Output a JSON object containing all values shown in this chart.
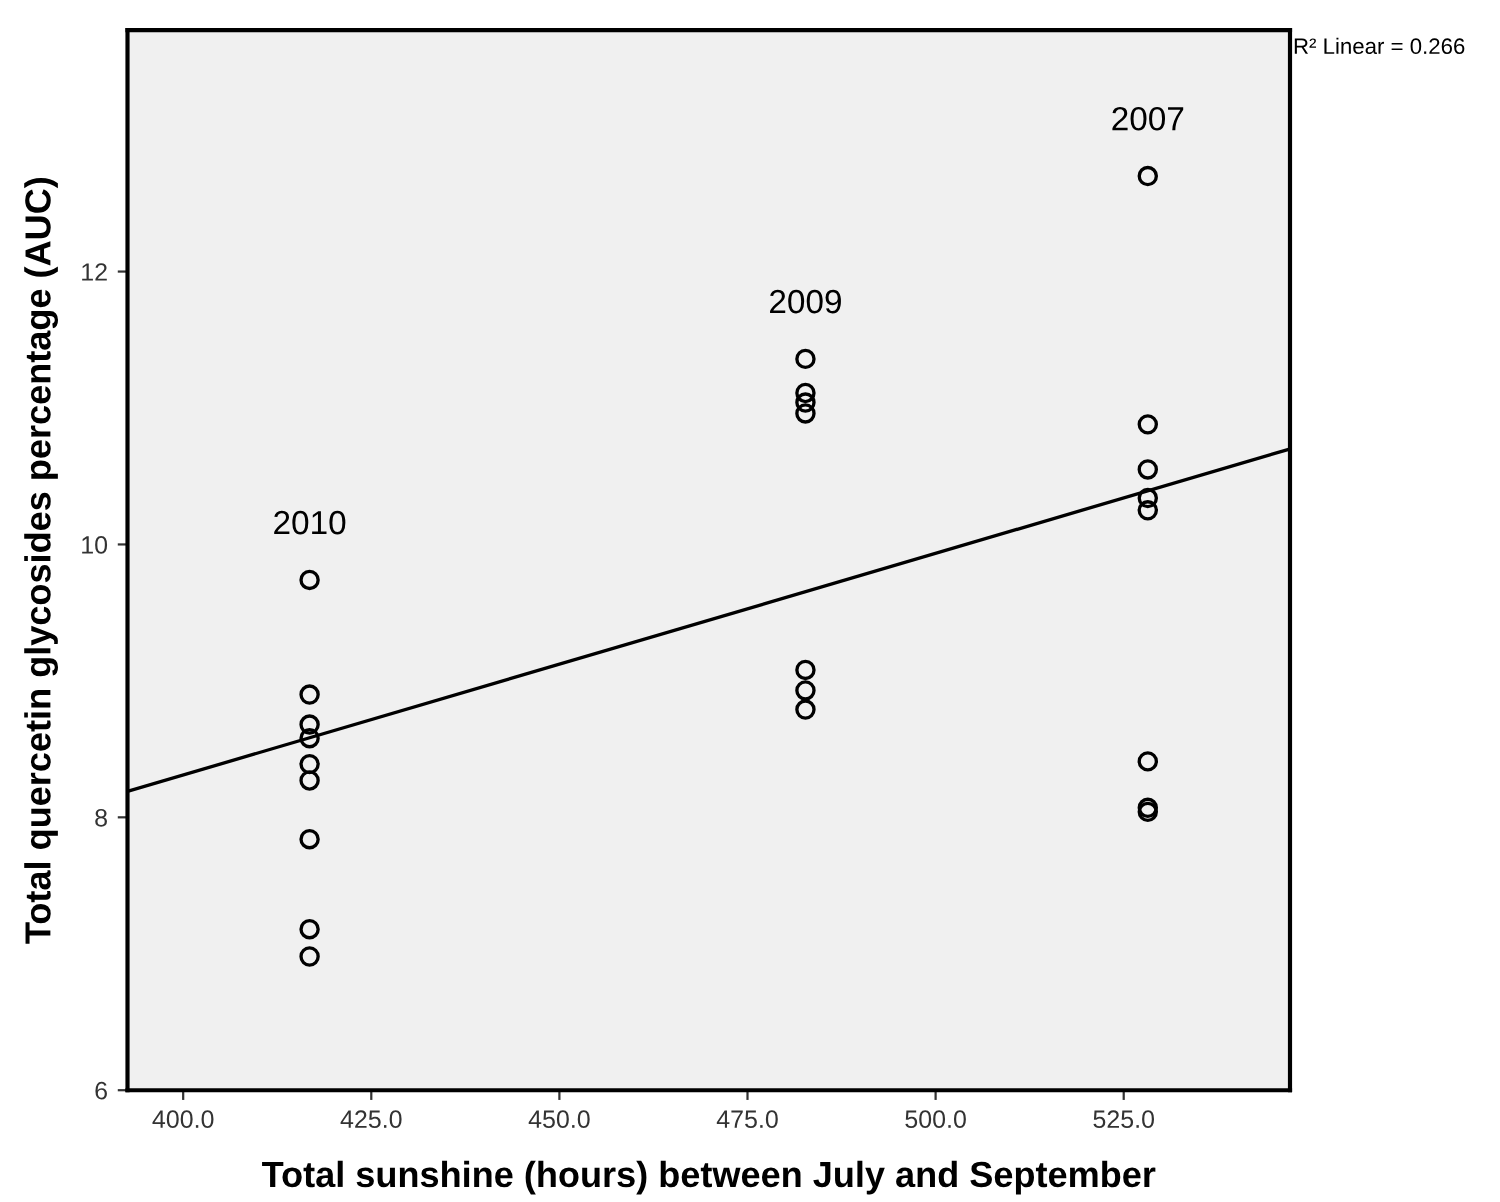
{
  "chart_data": {
    "type": "scatter",
    "xlabel": "Total sunshine (hours) between July and September",
    "ylabel": "Total quercetin glycosides percentage (AUC)",
    "xlim": [
      392.6,
      547.1
    ],
    "ylim": [
      6,
      13.77
    ],
    "xticks": [
      {
        "value": 400,
        "label": "400.0"
      },
      {
        "value": 425,
        "label": "425.0"
      },
      {
        "value": 450,
        "label": "450.0"
      },
      {
        "value": 475,
        "label": "475.0"
      },
      {
        "value": 500,
        "label": "500.0"
      },
      {
        "value": 525,
        "label": "525.0"
      }
    ],
    "yticks": [
      6,
      8,
      10,
      12
    ],
    "grid": false,
    "series": [
      {
        "color": "#000000",
        "marker": "circle",
        "x": [
          416.8,
          416.8,
          416.8,
          416.8,
          416.8,
          416.8,
          416.8,
          416.8,
          416.8,
          482.7,
          482.7,
          482.7,
          482.7,
          482.7,
          482.7,
          482.7,
          528.2,
          528.2,
          528.2,
          528.2,
          528.2,
          528.2,
          528.2,
          528.2
        ],
        "values": [
          9.74,
          8.9,
          8.68,
          8.58,
          8.39,
          8.27,
          7.84,
          7.18,
          6.98,
          11.36,
          11.11,
          11.04,
          10.96,
          9.08,
          8.93,
          8.79,
          12.7,
          10.88,
          10.55,
          10.34,
          10.25,
          8.41,
          8.07,
          8.04
        ]
      },
      {
        "type": "line",
        "color": "#000000",
        "x": [
          392.6,
          547.1
        ],
        "values": [
          8.19,
          10.7
        ],
        "line_style": "solid"
      }
    ],
    "annotations": [
      "2010",
      "2009",
      "2007",
      "R² Linear = 0.266"
    ]
  }
}
